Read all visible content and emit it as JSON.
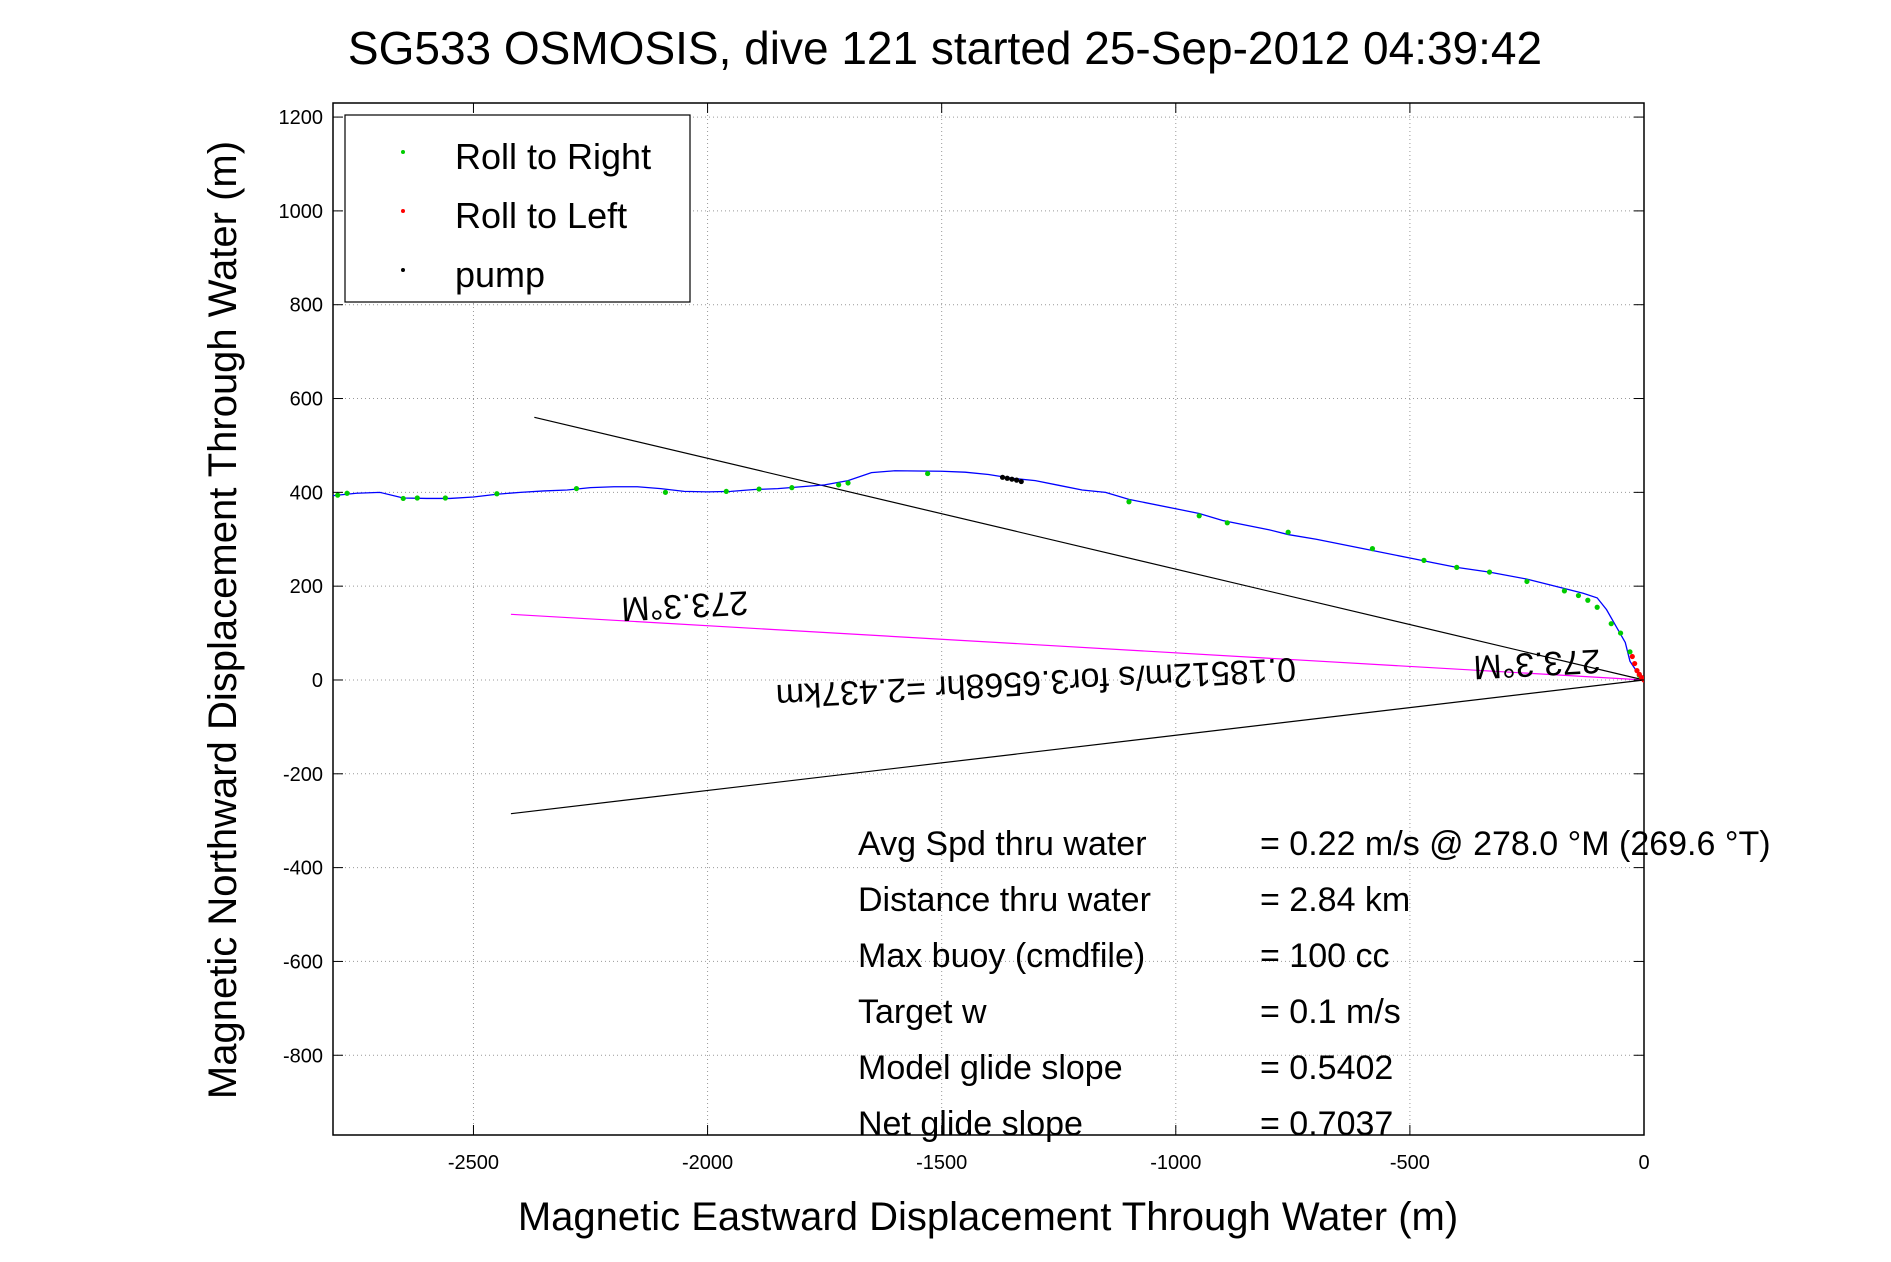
{
  "chart_data": {
    "type": "line",
    "title": "SG533 OSMOSIS, dive 121 started 25-Sep-2012 04:39:42",
    "xlabel": "Magnetic Eastward Displacement Through Water (m)",
    "ylabel": "Magnetic Northward Displacement Through Water (m)",
    "xlim": [
      -2800,
      0
    ],
    "ylim": [
      -970,
      1230
    ],
    "xticks": [
      -2500,
      -2000,
      -1500,
      -1000,
      -500,
      0
    ],
    "yticks": [
      -800,
      -600,
      -400,
      -200,
      0,
      200,
      400,
      600,
      800,
      1000,
      1200
    ],
    "grid": true,
    "legend": {
      "placement": "top-left",
      "entries": [
        {
          "label": "Roll to Right",
          "color": "#00cc00"
        },
        {
          "label": "Roll to Left",
          "color": "#ff0000"
        },
        {
          "label": "pump",
          "color": "#000000"
        }
      ]
    },
    "track": {
      "color": "#0000ff",
      "x": [
        0,
        -10,
        -20,
        -30,
        -40,
        -60,
        -80,
        -100,
        -130,
        -170,
        -250,
        -330,
        -400,
        -450,
        -500,
        -600,
        -700,
        -760,
        -800,
        -900,
        -950,
        -1000,
        -1100,
        -1150,
        -1200,
        -1250,
        -1300,
        -1350,
        -1400,
        -1450,
        -1500,
        -1600,
        -1650,
        -1700,
        -1750,
        -1800,
        -1850,
        -1900,
        -1950,
        -2000,
        -2050,
        -2100,
        -2150,
        -2200,
        -2250,
        -2300,
        -2350,
        -2400,
        -2450,
        -2500,
        -2550,
        -2600,
        -2650,
        -2700,
        -2750,
        -2800
      ],
      "y": [
        0,
        10,
        25,
        40,
        80,
        115,
        150,
        175,
        185,
        195,
        215,
        230,
        240,
        250,
        260,
        280,
        300,
        310,
        320,
        340,
        355,
        365,
        385,
        400,
        405,
        415,
        425,
        430,
        438,
        443,
        445,
        446,
        442,
        425,
        416,
        412,
        408,
        406,
        402,
        401,
        402,
        408,
        412,
        412,
        410,
        405,
        403,
        400,
        396,
        390,
        387,
        387,
        388,
        400,
        398,
        393
      ]
    },
    "series": [
      {
        "name": "Roll to Right",
        "color": "#00cc00",
        "x": [
          -10,
          -30,
          -50,
          -70,
          -100,
          -120,
          -140,
          -170,
          -250,
          -330,
          -400,
          -470,
          -580,
          -760,
          -890,
          -950,
          -1100,
          -1530,
          -1700,
          -1720,
          -1820,
          -1890,
          -1960,
          -2090,
          -2280,
          -2450,
          -2560,
          -2620,
          -2650,
          -2770,
          -2790
        ],
        "y": [
          10,
          60,
          100,
          120,
          155,
          170,
          180,
          190,
          210,
          230,
          240,
          255,
          280,
          315,
          335,
          350,
          380,
          440,
          420,
          416,
          410,
          407,
          402,
          400,
          408,
          397,
          388,
          388,
          387,
          398,
          394
        ]
      },
      {
        "name": "Roll to Left",
        "color": "#ff0000",
        "x": [
          0,
          -5,
          -10,
          -15,
          -20,
          -25
        ],
        "y": [
          0,
          5,
          12,
          20,
          35,
          50
        ]
      },
      {
        "name": "pump",
        "color": "#000000",
        "x": [
          -1330,
          -1340,
          -1350,
          -1360,
          -1370
        ],
        "y": [
          423,
          426,
          428,
          430,
          432
        ]
      }
    ],
    "lines": [
      {
        "color": "#000000",
        "x": [
          0,
          -2370
        ],
        "y": [
          0,
          560
        ]
      },
      {
        "color": "#000000",
        "x": [
          0,
          -2420
        ],
        "y": [
          0,
          -285
        ]
      },
      {
        "color": "#ff00ff",
        "x": [
          0,
          -2420
        ],
        "y": [
          0,
          140
        ]
      }
    ],
    "annotations": {
      "rotated": [
        {
          "text": "273.3°M",
          "x": -2050,
          "y": 182
        },
        {
          "text": "273.3°M",
          "x": -230,
          "y": 58
        },
        {
          "text": "0.18512m/s for3.6568hr =2.437km",
          "x": -1300,
          "y": 18
        }
      ],
      "stats": [
        {
          "label": "Avg Spd thru water",
          "value": "=  0.22 m/s @ 278.0 °M (269.6 °T)"
        },
        {
          "label": "Distance thru water",
          "value": "=  2.84 km"
        },
        {
          "label": "Max buoy (cmdfile)",
          "value": "= 100 cc"
        },
        {
          "label": "Target w",
          "value": "= 0.1 m/s"
        },
        {
          "label": "Model glide slope",
          "value": "= 0.5402"
        },
        {
          "label": "Net glide slope",
          "value": "= 0.7037"
        }
      ]
    }
  }
}
